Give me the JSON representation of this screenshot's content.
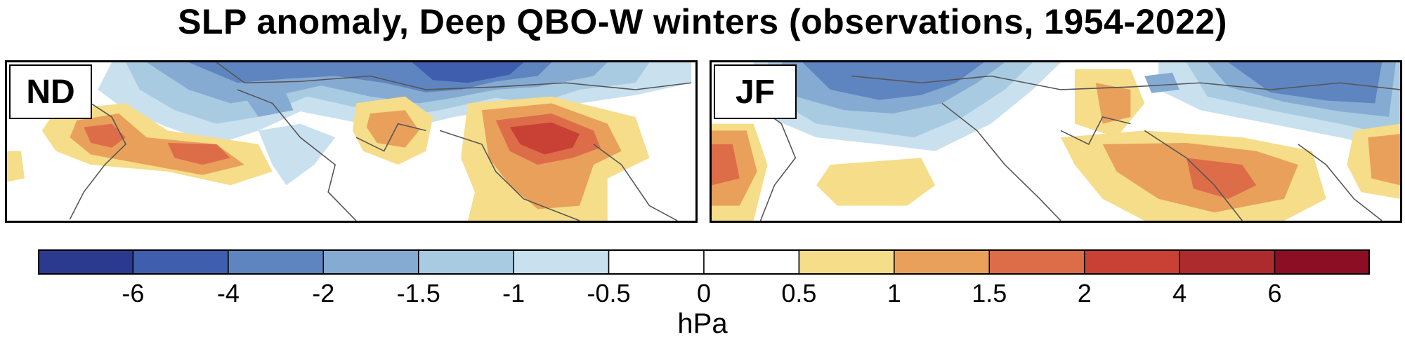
{
  "title": "SLP anomaly, Deep QBO-W winters (observations, 1954-2022)",
  "panels": [
    {
      "label": "ND"
    },
    {
      "label": "JF"
    }
  ],
  "colorbar": {
    "units": "hPa",
    "tick_labels": [
      "-6",
      "-4",
      "-2",
      "-1.5",
      "-1",
      "-0.5",
      "0",
      "0.5",
      "1",
      "1.5",
      "2",
      "4",
      "6"
    ],
    "colors": [
      "#2b3a8f",
      "#3f5fae",
      "#5f85c0",
      "#86abd3",
      "#a9cbe2",
      "#c9e0ee",
      "#ffffff",
      "#ffffff",
      "#f6dd8a",
      "#e9a05b",
      "#dd6d48",
      "#c94035",
      "#ad2b2d",
      "#8b0e25"
    ]
  },
  "chart_data": {
    "type": "heatmap",
    "variable": "SLP anomaly",
    "units": "hPa",
    "contour_levels": [
      -6,
      -4,
      -2,
      -1.5,
      -1,
      -0.5,
      0,
      0.5,
      1,
      1.5,
      2,
      4,
      6
    ],
    "panels": [
      "ND",
      "JF"
    ]
  }
}
